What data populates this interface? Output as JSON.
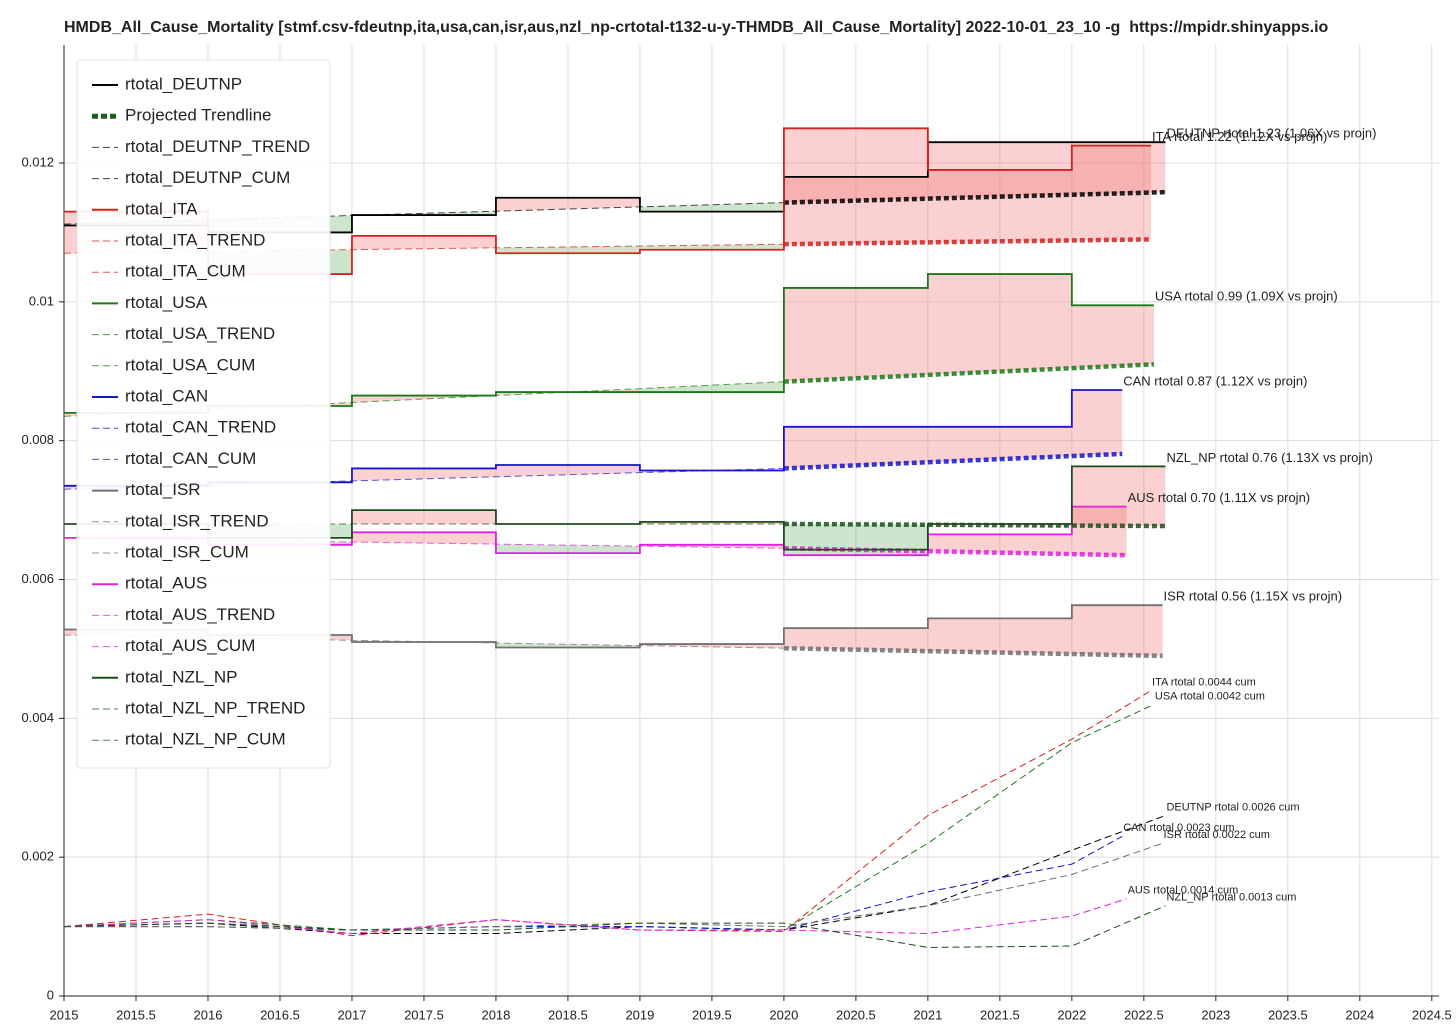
{
  "chart_data": {
    "type": "line",
    "title": "HMDB_All_Cause_Mortality [stmf.csv-fdeutnp,ita,usa,can,isr,aus,nzl_np-crtotal-t132-u-y-THMDB_All_Cause_Mortality] 2022-10-01_23_10 -g  https://mpidr.shinyapps.io",
    "xlim": [
      2015,
      2024.55
    ],
    "ylim": [
      0,
      0.0137
    ],
    "xticks": [
      2015,
      2015.5,
      2016,
      2016.5,
      2017,
      2017.5,
      2018,
      2018.5,
      2019,
      2019.5,
      2020,
      2020.5,
      2021,
      2021.5,
      2022,
      2022.5,
      2023,
      2023.5,
      2024,
      2024.5
    ],
    "yticks": [
      0,
      0.002,
      0.004,
      0.006,
      0.008,
      0.01,
      0.012
    ],
    "grid": true,
    "trend_marker": {
      "name": "Projected Trendline",
      "color": "#1b5e20"
    },
    "series": [
      {
        "name": "rtotal_DEUTNP",
        "style": "step",
        "color": "#000000",
        "label": "DEUTNP rtotal 1.23 (1.06X vs projn)",
        "x": [
          2015,
          2016,
          2017,
          2018,
          2019,
          2020,
          2021,
          2022,
          2022.65
        ],
        "values": [
          0.0111,
          0.011,
          0.01125,
          0.0115,
          0.0113,
          0.0118,
          0.0123,
          0.0123,
          0.0123
        ]
      },
      {
        "name": "rtotal_DEUTNP_TREND",
        "style": "trend",
        "color": "#000000",
        "x": [
          2015,
          2020,
          2022.65
        ],
        "values": [
          0.01112,
          0.01143,
          0.01158
        ]
      },
      {
        "name": "rtotal_DEUTNP_CUM",
        "style": "cum",
        "color": "#000000",
        "label": "DEUTNP rtotal 0.0026 cum",
        "x": [
          2015,
          2016,
          2017,
          2018,
          2019,
          2020,
          2021,
          2022,
          2022.65
        ],
        "values": [
          0.001,
          0.00105,
          0.0009,
          0.0009,
          0.001,
          0.00095,
          0.0013,
          0.0021,
          0.0026
        ]
      },
      {
        "name": "rtotal_ITA",
        "style": "step",
        "color": "#d62020",
        "label": "ITA rtotal 1.22 (1.12X vs projn)",
        "x": [
          2015,
          2016,
          2017,
          2018,
          2019,
          2020,
          2021,
          2022,
          2022.55
        ],
        "values": [
          0.0113,
          0.0104,
          0.01095,
          0.0107,
          0.01075,
          0.0125,
          0.0119,
          0.01225,
          0.01225
        ]
      },
      {
        "name": "rtotal_ITA_TREND",
        "style": "trend",
        "color": "#d62020",
        "x": [
          2015,
          2020,
          2022.55
        ],
        "values": [
          0.0107,
          0.01083,
          0.0109
        ]
      },
      {
        "name": "rtotal_ITA_CUM",
        "style": "cum",
        "color": "#d62020",
        "label": "ITA rtotal 0.0044 cum",
        "x": [
          2015,
          2016,
          2017,
          2018,
          2019,
          2020,
          2021,
          2022,
          2022.55
        ],
        "values": [
          0.001,
          0.00118,
          0.00087,
          0.0011,
          0.00095,
          0.00093,
          0.0026,
          0.0037,
          0.0044
        ]
      },
      {
        "name": "rtotal_USA",
        "style": "step",
        "color": "#1a7a1a",
        "label": "USA rtotal 0.99 (1.09X vs projn)",
        "x": [
          2015,
          2016,
          2017,
          2018,
          2019,
          2020,
          2021,
          2022,
          2022.57
        ],
        "values": [
          0.0084,
          0.0085,
          0.00865,
          0.0087,
          0.0087,
          0.0102,
          0.0104,
          0.00995,
          0.00995
        ]
      },
      {
        "name": "rtotal_USA_TREND",
        "style": "trend",
        "color": "#1a7a1a",
        "x": [
          2015,
          2020,
          2022.57
        ],
        "values": [
          0.00835,
          0.00885,
          0.0091
        ]
      },
      {
        "name": "rtotal_USA_CUM",
        "style": "cum",
        "color": "#1a7a1a",
        "label": "USA rtotal 0.0042 cum",
        "x": [
          2015,
          2016,
          2017,
          2018,
          2019,
          2020,
          2021,
          2022,
          2022.57
        ],
        "values": [
          0.001,
          0.0011,
          0.00095,
          0.001,
          0.001,
          0.00095,
          0.0022,
          0.00365,
          0.0042
        ]
      },
      {
        "name": "rtotal_CAN",
        "style": "step",
        "color": "#1515cc",
        "label": "CAN rtotal 0.87 (1.12X vs projn)",
        "x": [
          2015,
          2016,
          2017,
          2018,
          2019,
          2020,
          2021,
          2022,
          2022.35
        ],
        "values": [
          0.00735,
          0.0074,
          0.0076,
          0.00765,
          0.00757,
          0.0082,
          0.0082,
          0.00873,
          0.00873
        ]
      },
      {
        "name": "rtotal_CAN_TREND",
        "style": "trend",
        "color": "#1515cc",
        "x": [
          2015,
          2020,
          2022.35
        ],
        "values": [
          0.0073,
          0.0076,
          0.00781
        ]
      },
      {
        "name": "rtotal_CAN_CUM",
        "style": "cum",
        "color": "#1515cc",
        "label": "CAN rtotal 0.0023 cum",
        "x": [
          2015,
          2016,
          2017,
          2018,
          2019,
          2020,
          2021,
          2022,
          2022.35
        ],
        "values": [
          0.001,
          0.001,
          0.00095,
          0.001,
          0.001,
          0.00095,
          0.0015,
          0.0019,
          0.0023
        ]
      },
      {
        "name": "rtotal_ISR",
        "style": "step",
        "color": "#707070",
        "label": "ISR rtotal 0.56 (1.15X vs projn)",
        "x": [
          2015,
          2016,
          2017,
          2018,
          2019,
          2020,
          2021,
          2022,
          2022.63
        ],
        "values": [
          0.00528,
          0.0052,
          0.0051,
          0.00502,
          0.00507,
          0.0053,
          0.00544,
          0.00563,
          0.00563
        ]
      },
      {
        "name": "rtotal_ISR_TREND",
        "style": "trend",
        "color": "#707070",
        "x": [
          2015,
          2020,
          2022.63
        ],
        "values": [
          0.0052,
          0.00501,
          0.0049
        ]
      },
      {
        "name": "rtotal_ISR_CUM",
        "style": "cum",
        "color": "#707070",
        "label": "ISR rtotal 0.0022 cum",
        "x": [
          2015,
          2016,
          2017,
          2018,
          2019,
          2020,
          2021,
          2022,
          2022.63
        ],
        "values": [
          0.001,
          0.001,
          0.00095,
          0.001,
          0.00105,
          0.001,
          0.0013,
          0.00175,
          0.0022
        ]
      },
      {
        "name": "rtotal_AUS",
        "style": "step",
        "color": "#e020e0",
        "label": "AUS rtotal 0.70 (1.11X vs projn)",
        "x": [
          2015,
          2016,
          2017,
          2018,
          2019,
          2020,
          2021,
          2022,
          2022.38
        ],
        "values": [
          0.0066,
          0.0065,
          0.00668,
          0.00638,
          0.0065,
          0.00635,
          0.00665,
          0.00705,
          0.00705
        ]
      },
      {
        "name": "rtotal_AUS_TREND",
        "style": "trend",
        "color": "#e020e0",
        "x": [
          2015,
          2020,
          2022.38
        ],
        "values": [
          0.0066,
          0.00645,
          0.00635
        ]
      },
      {
        "name": "rtotal_AUS_CUM",
        "style": "cum",
        "color": "#e020e0",
        "label": "AUS rtotal 0.0014 cum",
        "x": [
          2015,
          2016,
          2017,
          2018,
          2019,
          2020,
          2021,
          2022,
          2022.38
        ],
        "values": [
          0.001,
          0.0011,
          0.0009,
          0.0011,
          0.00095,
          0.00095,
          0.0009,
          0.00115,
          0.0014
        ]
      },
      {
        "name": "rtotal_NZL_NP",
        "style": "step",
        "color": "#1b4d1b",
        "label": "NZL_NP rtotal 0.76 (1.13X vs projn)",
        "x": [
          2015,
          2016,
          2017,
          2018,
          2019,
          2020,
          2021,
          2022,
          2022.65
        ],
        "values": [
          0.0068,
          0.0066,
          0.007,
          0.0068,
          0.00683,
          0.00643,
          0.0068,
          0.00763,
          0.00763
        ]
      },
      {
        "name": "rtotal_NZL_NP_TREND",
        "style": "trend",
        "color": "#1b4d1b",
        "x": [
          2015,
          2020,
          2022.65
        ],
        "values": [
          0.0068,
          0.0068,
          0.00677
        ]
      },
      {
        "name": "rtotal_NZL_NP_CUM",
        "style": "cum",
        "color": "#1b4d1b",
        "label": "NZL_NP rtotal 0.0013 cum",
        "x": [
          2015,
          2016,
          2017,
          2018,
          2019,
          2020,
          2021,
          2022,
          2022.65
        ],
        "values": [
          0.001,
          0.00105,
          0.00095,
          0.00095,
          0.00105,
          0.00105,
          0.0007,
          0.00072,
          0.0013
        ]
      }
    ]
  }
}
